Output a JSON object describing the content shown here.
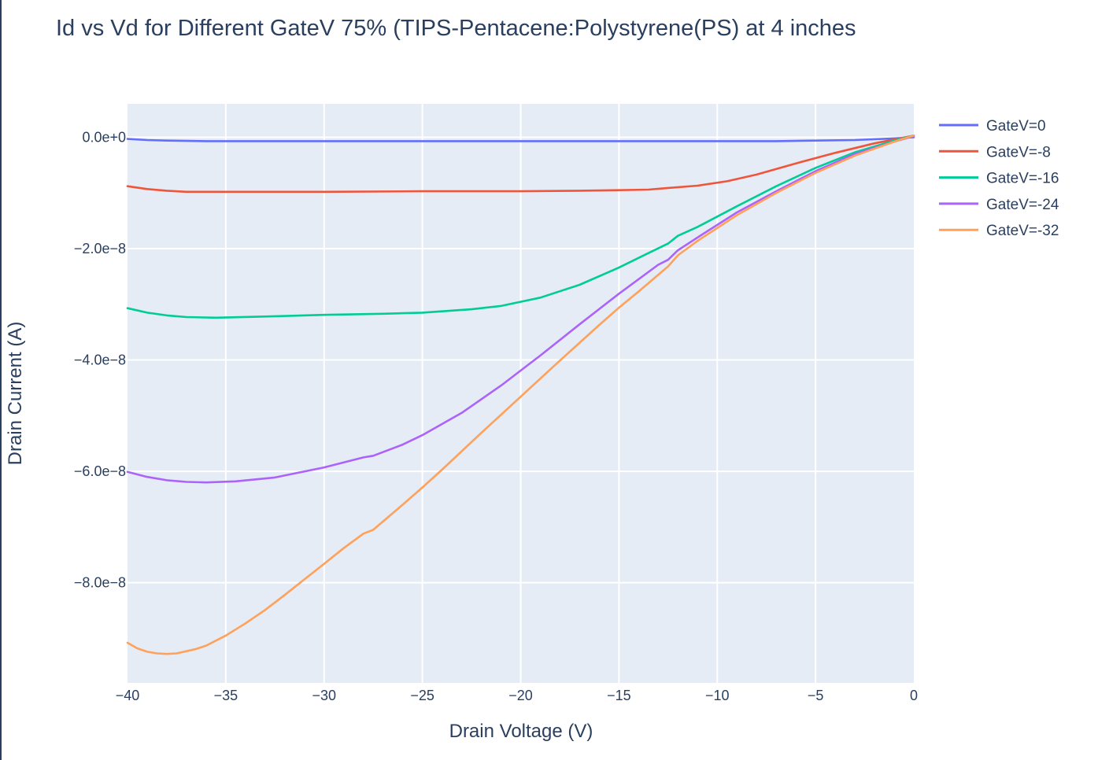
{
  "chart_data": {
    "type": "line",
    "title": "Id vs Vd for Different GateV 75% (TIPS-Pentacene:Polystyrene(PS) at 4 inches",
    "xlabel": "Drain Voltage (V)",
    "ylabel": "Drain Current (A)",
    "xlim": [
      -40,
      0
    ],
    "ylim": [
      -9.8e-08,
      6e-09
    ],
    "x_ticks": [
      -40,
      -35,
      -30,
      -25,
      -20,
      -15,
      -10,
      -5,
      0
    ],
    "x_tick_labels": [
      "−40",
      "−35",
      "−30",
      "−25",
      "−20",
      "−15",
      "−10",
      "−5",
      "0"
    ],
    "y_ticks": [
      0,
      -2e-08,
      -4e-08,
      -6e-08,
      -8e-08
    ],
    "y_tick_labels": [
      "0.0e+0",
      "−2.0e−8",
      "−4.0e−8",
      "−6.0e−8",
      "−8.0e−8"
    ],
    "grid": true,
    "legend_position": "top-right",
    "series": [
      {
        "name": "GateV=0",
        "color": "#636efa",
        "x": [
          -40,
          -39,
          -38,
          -36,
          -34,
          -30,
          -25,
          -20,
          -15,
          -10,
          -7,
          -5,
          -3,
          -1,
          0
        ],
        "y": [
          -3e-10,
          -5e-10,
          -6e-10,
          -7e-10,
          -7e-10,
          -7e-10,
          -7e-10,
          -7e-10,
          -7e-10,
          -7e-10,
          -7e-10,
          -6e-10,
          -5e-10,
          -2e-10,
          0.0
        ]
      },
      {
        "name": "GateV=-8",
        "color": "#ef553b",
        "x": [
          -40,
          -39,
          -38,
          -37,
          -35,
          -30,
          -25,
          -20,
          -17,
          -15,
          -13.5,
          -12.5,
          -11,
          -9.5,
          -8,
          -6,
          -4,
          -2,
          -1,
          0
        ],
        "y": [
          -8.8e-09,
          -9.3e-09,
          -9.6e-09,
          -9.8e-09,
          -9.8e-09,
          -9.8e-09,
          -9.7e-09,
          -9.7e-09,
          -9.6e-09,
          -9.5e-09,
          -9.4e-09,
          -9.1e-09,
          -8.7e-09,
          -7.9e-09,
          -6.7e-09,
          -4.7e-09,
          -2.8e-09,
          -1.1e-09,
          -4e-10,
          3e-10
        ]
      },
      {
        "name": "GateV=-16",
        "color": "#00cc96",
        "x": [
          -40,
          -39,
          -38,
          -37,
          -35.5,
          -33,
          -30,
          -27,
          -25,
          -22.5,
          -21,
          -19,
          -17,
          -15,
          -13.5,
          -12.5,
          -12,
          -11,
          -9,
          -7,
          -5,
          -3,
          -1,
          0
        ],
        "y": [
          -3.07e-08,
          -3.15e-08,
          -3.2e-08,
          -3.23e-08,
          -3.24e-08,
          -3.22e-08,
          -3.19e-08,
          -3.17e-08,
          -3.15e-08,
          -3.09e-08,
          -3.03e-08,
          -2.88e-08,
          -2.65e-08,
          -2.34e-08,
          -2.08e-08,
          -1.91e-08,
          -1.77e-08,
          -1.61e-08,
          -1.24e-08,
          -8.8e-09,
          -5.5e-09,
          -2.7e-09,
          -6e-10,
          3e-10
        ]
      },
      {
        "name": "GateV=-24",
        "color": "#ab63fa",
        "x": [
          -40,
          -39,
          -38,
          -37,
          -36,
          -34.5,
          -32.5,
          -30,
          -28,
          -27.5,
          -26,
          -25,
          -23,
          -21,
          -19,
          -17,
          -15,
          -13,
          -12.5,
          -12,
          -11,
          -9,
          -7,
          -5,
          -3,
          -1,
          0
        ],
        "y": [
          -6.01e-08,
          -6.1e-08,
          -6.16e-08,
          -6.19e-08,
          -6.2e-08,
          -6.18e-08,
          -6.11e-08,
          -5.93e-08,
          -5.75e-08,
          -5.72e-08,
          -5.52e-08,
          -5.35e-08,
          -4.95e-08,
          -4.46e-08,
          -3.92e-08,
          -3.36e-08,
          -2.81e-08,
          -2.29e-08,
          -2.2e-08,
          -2.03e-08,
          -1.8e-08,
          -1.35e-08,
          -9.7e-09,
          -6.1e-09,
          -3e-09,
          -8e-10,
          2e-10
        ]
      },
      {
        "name": "GateV=-32",
        "color": "#ffa15a",
        "x": [
          -40,
          -39.5,
          -39,
          -38.5,
          -38,
          -37.5,
          -37,
          -36.5,
          -36,
          -35,
          -34,
          -33,
          -32,
          -31,
          -30,
          -29,
          -28,
          -27.5,
          -27,
          -26,
          -25,
          -24,
          -22,
          -20,
          -18,
          -16,
          -15,
          -14,
          -12.5,
          -12,
          -11,
          -9,
          -7,
          -5,
          -3,
          -1,
          0
        ],
        "y": [
          -9.08e-08,
          -9.18e-08,
          -9.24e-08,
          -9.27e-08,
          -9.28e-08,
          -9.27e-08,
          -9.23e-08,
          -9.19e-08,
          -9.13e-08,
          -8.95e-08,
          -8.73e-08,
          -8.49e-08,
          -8.22e-08,
          -7.94e-08,
          -7.66e-08,
          -7.38e-08,
          -7.12e-08,
          -7.05e-08,
          -6.9e-08,
          -6.6e-08,
          -6.29e-08,
          -5.97e-08,
          -5.31e-08,
          -4.66e-08,
          -4.01e-08,
          -3.37e-08,
          -3.06e-08,
          -2.77e-08,
          -2.32e-08,
          -2.12e-08,
          -1.86e-08,
          -1.4e-08,
          -1e-08,
          -6.4e-09,
          -3.3e-09,
          -8e-10,
          3e-10
        ]
      }
    ]
  }
}
